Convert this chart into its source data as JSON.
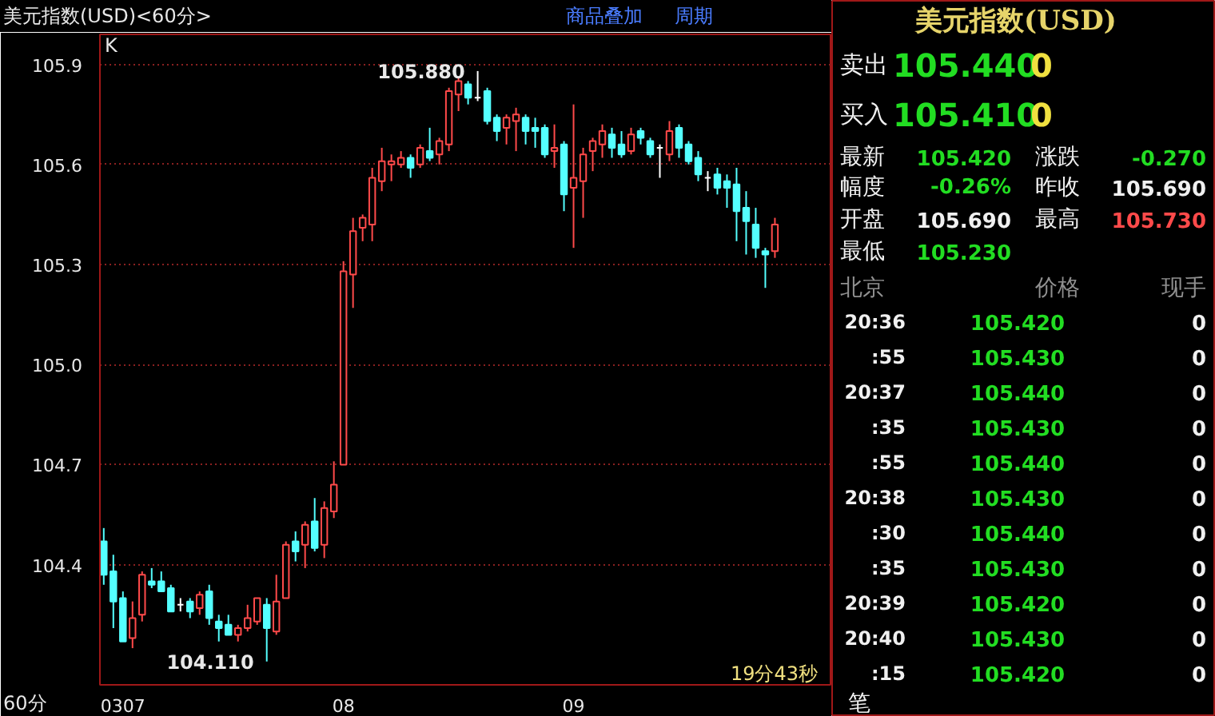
{
  "chart_data": [
    {
      "type": "candlestick",
      "title": "美元指数(USD)<60分>",
      "categories": [
        null,
        null,
        "0307",
        null,
        null,
        null,
        null,
        null,
        null,
        null,
        null,
        null,
        null,
        null,
        null,
        null,
        null,
        null,
        null,
        null,
        null,
        null,
        null,
        null,
        null,
        "08",
        null,
        null,
        null,
        null,
        null,
        null,
        null,
        null,
        null,
        null,
        null,
        null,
        null,
        null,
        null,
        null,
        null,
        null,
        null,
        null,
        null,
        null,
        null,
        "09",
        null,
        null,
        null,
        null,
        null,
        null,
        null,
        null,
        null,
        null,
        null,
        null,
        null,
        null,
        null,
        null,
        null,
        null,
        null,
        null,
        null
      ],
      "ohlc": [
        [
          104.47,
          104.51,
          104.34,
          104.37
        ],
        [
          104.38,
          104.43,
          104.21,
          104.29
        ],
        [
          104.3,
          104.32,
          104.17,
          104.17
        ],
        [
          104.18,
          104.29,
          104.15,
          104.24
        ],
        [
          104.25,
          104.38,
          104.23,
          104.37
        ],
        [
          104.35,
          104.39,
          104.33,
          104.34
        ],
        [
          104.35,
          104.38,
          104.32,
          104.32
        ],
        [
          104.33,
          104.34,
          104.26,
          104.26
        ],
        [
          104.28,
          104.3,
          104.26,
          104.28
        ],
        [
          104.29,
          104.3,
          104.24,
          104.26
        ],
        [
          104.27,
          104.32,
          104.25,
          104.31
        ],
        [
          104.32,
          104.34,
          104.22,
          104.24
        ],
        [
          104.23,
          104.25,
          104.17,
          104.21
        ],
        [
          104.22,
          104.25,
          104.19,
          104.19
        ],
        [
          104.19,
          104.22,
          104.17,
          104.21
        ],
        [
          104.21,
          104.28,
          104.2,
          104.24
        ],
        [
          104.23,
          104.3,
          104.22,
          104.3
        ],
        [
          104.28,
          104.3,
          104.11,
          104.21
        ],
        [
          104.2,
          104.37,
          104.19,
          104.29
        ],
        [
          104.3,
          104.47,
          104.3,
          104.46
        ],
        [
          104.47,
          104.5,
          104.41,
          104.44
        ],
        [
          104.46,
          104.53,
          104.39,
          104.52
        ],
        [
          104.53,
          104.6,
          104.44,
          104.45
        ],
        [
          104.46,
          104.59,
          104.42,
          104.57
        ],
        [
          104.56,
          104.71,
          104.54,
          104.64
        ],
        [
          104.7,
          105.31,
          104.7,
          105.28
        ],
        [
          105.27,
          105.44,
          105.17,
          105.4
        ],
        [
          105.41,
          105.45,
          105.37,
          105.44
        ],
        [
          105.42,
          105.59,
          105.37,
          105.56
        ],
        [
          105.55,
          105.65,
          105.52,
          105.61
        ],
        [
          105.6,
          105.63,
          105.55,
          105.61
        ],
        [
          105.6,
          105.64,
          105.59,
          105.62
        ],
        [
          105.62,
          105.63,
          105.56,
          105.59
        ],
        [
          105.6,
          105.66,
          105.59,
          105.65
        ],
        [
          105.64,
          105.71,
          105.61,
          105.62
        ],
        [
          105.63,
          105.68,
          105.6,
          105.67
        ],
        [
          105.66,
          105.83,
          105.64,
          105.82
        ],
        [
          105.81,
          105.86,
          105.76,
          105.85
        ],
        [
          105.84,
          105.85,
          105.78,
          105.8
        ],
        [
          105.8,
          105.88,
          105.79,
          105.8
        ],
        [
          105.82,
          105.83,
          105.72,
          105.73
        ],
        [
          105.74,
          105.75,
          105.67,
          105.7
        ],
        [
          105.71,
          105.75,
          105.66,
          105.74
        ],
        [
          105.73,
          105.77,
          105.64,
          105.75
        ],
        [
          105.74,
          105.75,
          105.66,
          105.7
        ],
        [
          105.71,
          105.74,
          105.65,
          105.7
        ],
        [
          105.71,
          105.72,
          105.62,
          105.63
        ],
        [
          105.64,
          105.72,
          105.59,
          105.65
        ],
        [
          105.66,
          105.67,
          105.46,
          105.51
        ],
        [
          105.53,
          105.78,
          105.35,
          105.56
        ],
        [
          105.55,
          105.65,
          105.44,
          105.63
        ],
        [
          105.64,
          105.68,
          105.58,
          105.67
        ],
        [
          105.66,
          105.72,
          105.62,
          105.7
        ],
        [
          105.69,
          105.71,
          105.62,
          105.65
        ],
        [
          105.66,
          105.7,
          105.62,
          105.63
        ],
        [
          105.64,
          105.71,
          105.63,
          105.69
        ],
        [
          105.7,
          105.71,
          105.66,
          105.68
        ],
        [
          105.67,
          105.68,
          105.62,
          105.63
        ],
        [
          105.65,
          105.66,
          105.56,
          105.65
        ],
        [
          105.63,
          105.73,
          105.61,
          105.7
        ],
        [
          105.71,
          105.72,
          105.62,
          105.65
        ],
        [
          105.66,
          105.67,
          105.6,
          105.61
        ],
        [
          105.62,
          105.64,
          105.55,
          105.57
        ],
        [
          105.56,
          105.58,
          105.52,
          105.56
        ],
        [
          105.57,
          105.59,
          105.51,
          105.53
        ],
        [
          105.55,
          105.57,
          105.47,
          105.53
        ],
        [
          105.54,
          105.59,
          105.37,
          105.46
        ],
        [
          105.47,
          105.52,
          105.33,
          105.43
        ],
        [
          105.42,
          105.47,
          105.32,
          105.35
        ],
        [
          105.34,
          105.35,
          105.23,
          105.33
        ],
        [
          105.34,
          105.44,
          105.32,
          105.42
        ]
      ],
      "ylim": [
        104.04,
        105.99
      ],
      "yticks": [
        104.4,
        104.7,
        {
          "value": 105,
          "label": "105.0"
        },
        105.3,
        105.6,
        105.9
      ],
      "grid": "y",
      "annotations": [
        "K",
        "商品叠加",
        "周期",
        "60分",
        "19分43秒",
        "105.880",
        "104.110"
      ]
    },
    {
      "type": "other",
      "title": "美元指数(USD)",
      "annotations": [
        "卖出",
        "105.440",
        "0",
        "买入",
        "105.410",
        "0",
        "最新",
        "105.420",
        "涨跌",
        "-0.270",
        "幅度",
        "-0.26%",
        "昨收",
        "105.690",
        "开盘",
        "105.690",
        "最高",
        "105.730",
        "最低",
        "105.230",
        "北京",
        "价格",
        "现手",
        "20:36",
        "105.420",
        "0",
        ":55",
        "105.430",
        "0",
        "20:37",
        "105.440",
        "0",
        ":35",
        "105.430",
        "0",
        ":55",
        "105.440",
        "0",
        "20:38",
        "105.430",
        "0",
        ":30",
        "105.440",
        "0",
        ":35",
        "105.430",
        "0",
        "20:39",
        "105.420",
        "0",
        "20:40",
        "105.430",
        "0",
        ":15",
        "105.420",
        "0",
        "笔"
      ]
    }
  ]
}
